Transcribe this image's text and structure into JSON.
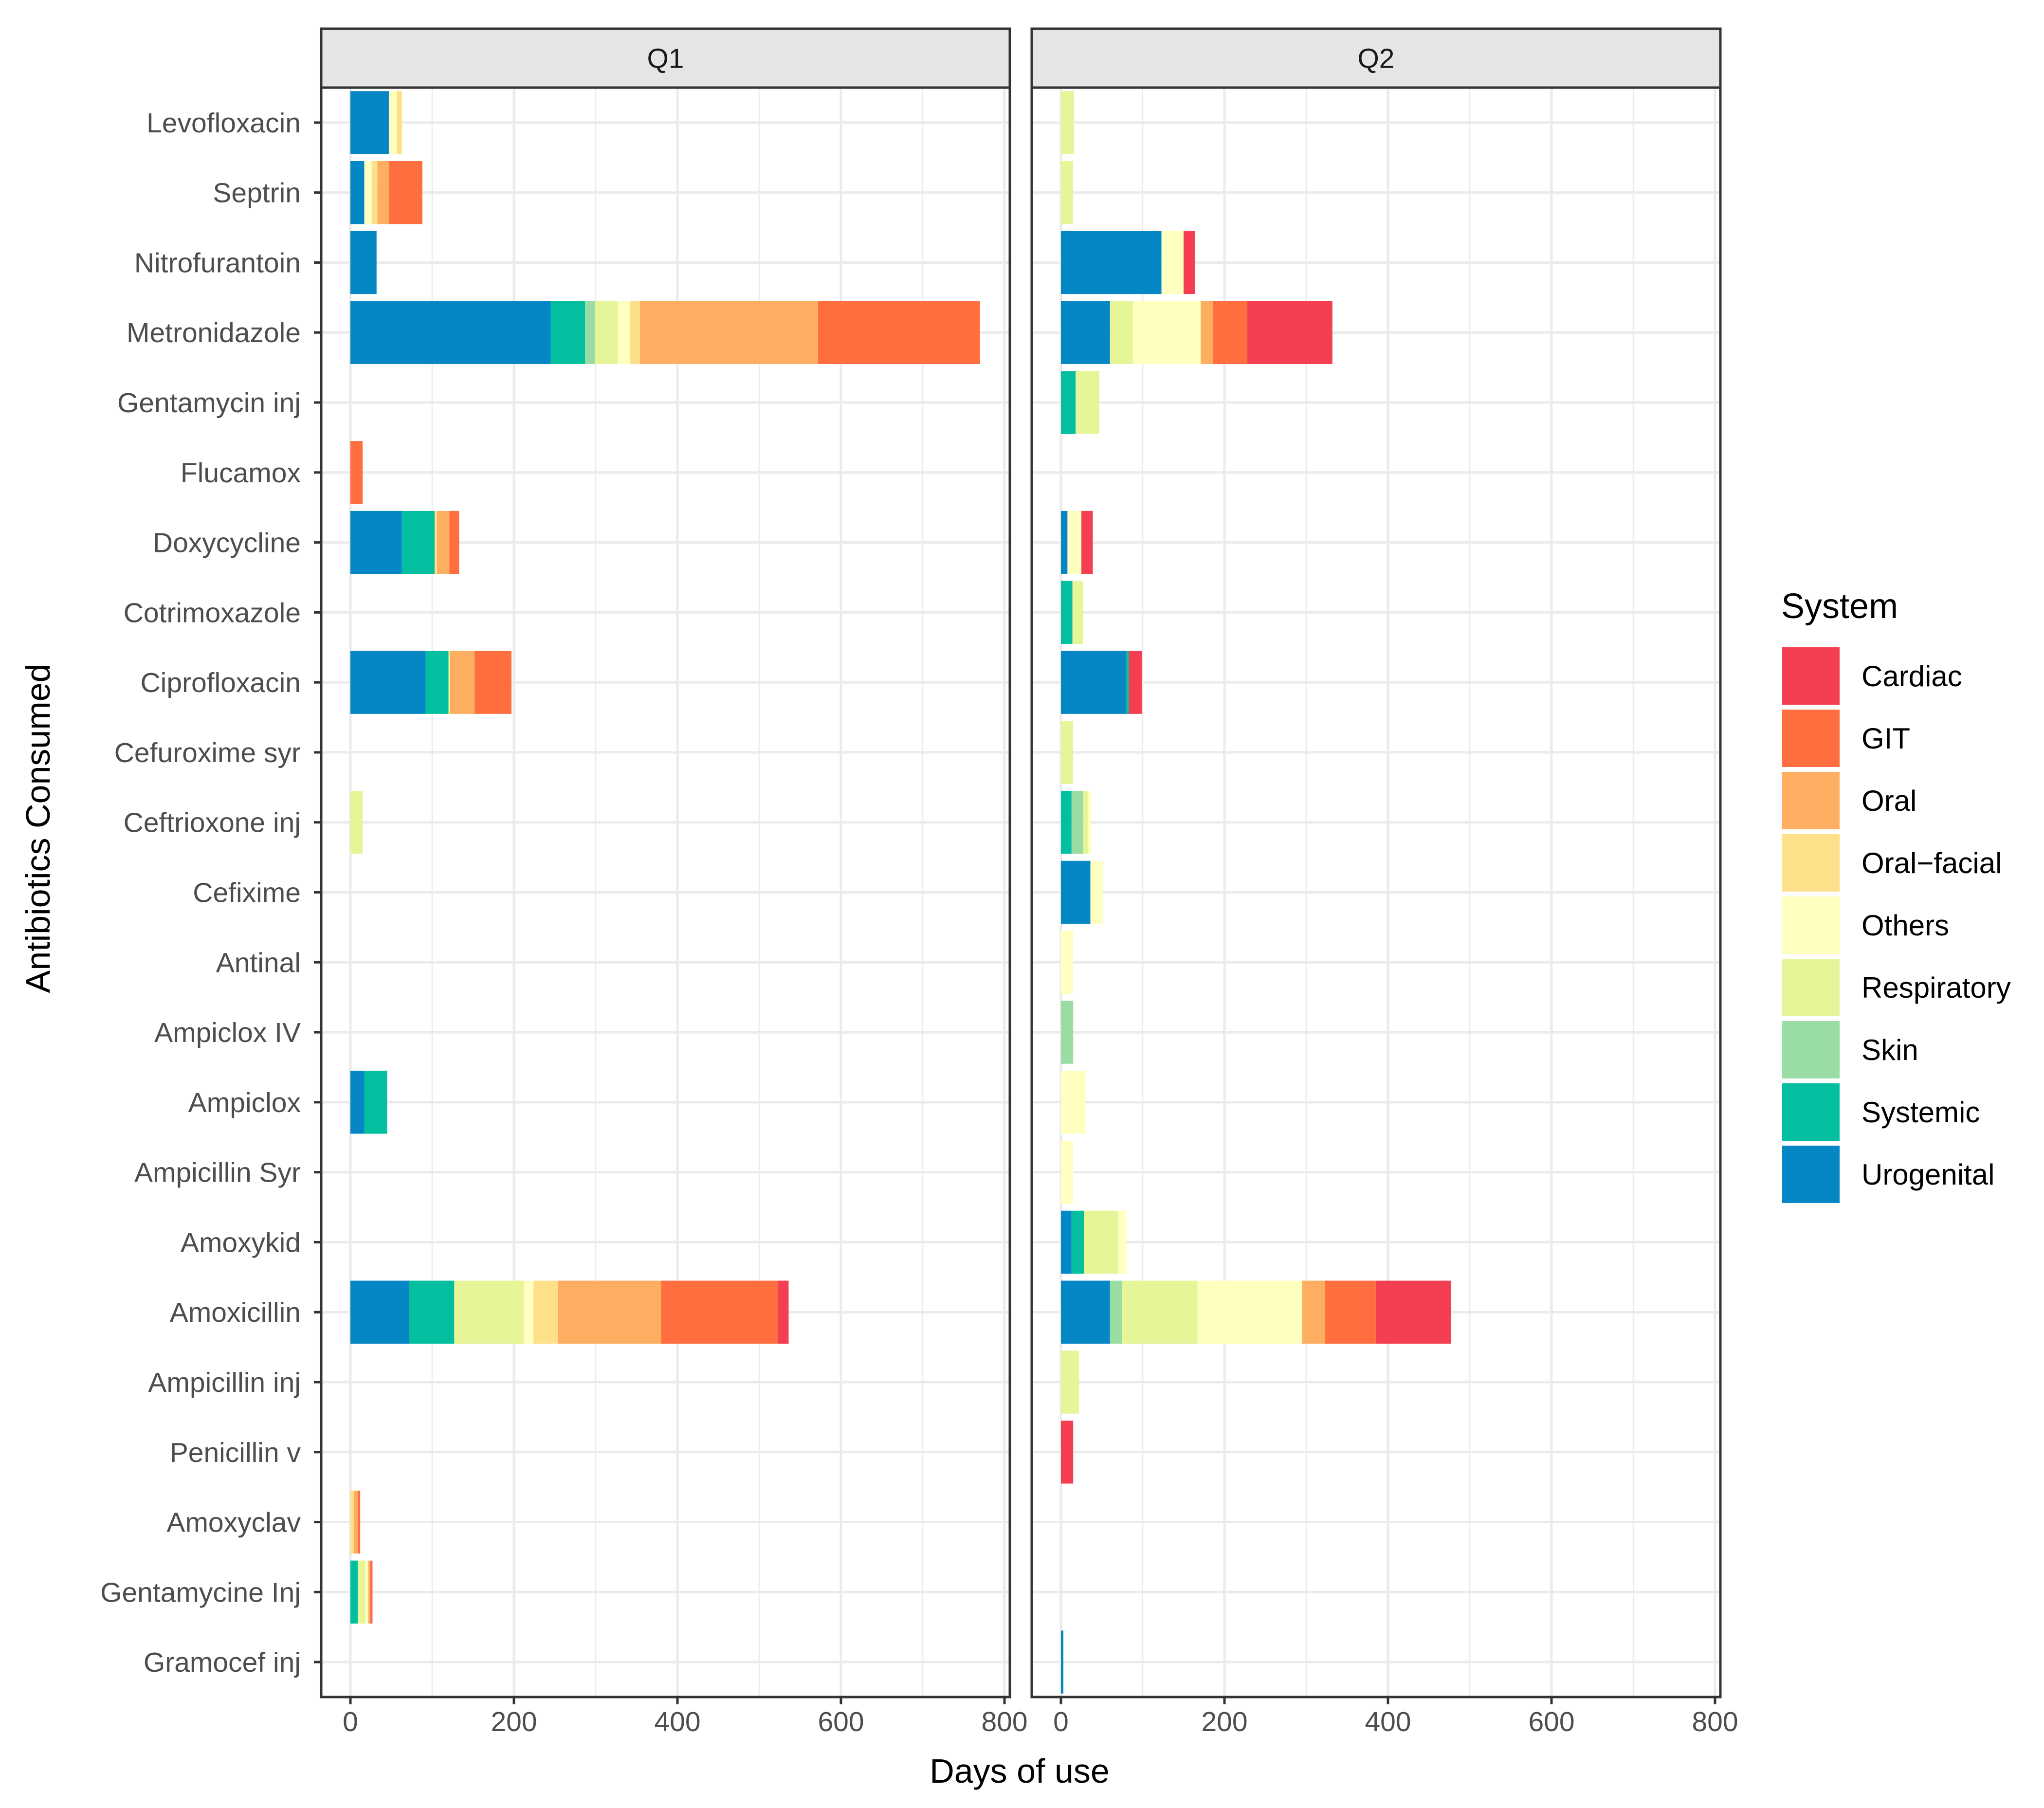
{
  "chart_data": {
    "type": "bar",
    "orientation": "horizontal",
    "stacked": true,
    "facets": [
      "Q1",
      "Q2"
    ],
    "xlabel": "Days of use",
    "ylabel": "Antibiotics Consumed",
    "xlim": [
      -35,
      805
    ],
    "xticks": [
      0,
      200,
      400,
      600,
      800
    ],
    "categories": [
      "Levofloxacin",
      "Septrin",
      "Nitrofurantoin",
      "Metronidazole",
      "Gentamycin inj",
      "Flucamox",
      "Doxycycline",
      "Cotrimoxazole",
      "Ciprofloxacin",
      "Cefuroxime syr",
      "Ceftrioxone inj",
      "Cefixime",
      "Antinal",
      "Ampiclox IV",
      "Ampiclox",
      "Ampicillin Syr",
      "Amoxykid",
      "Amoxicillin",
      "Ampicillin inj",
      "Penicillin v",
      "Amoxyclav",
      "Gentamycine Inj",
      "Gramocef  inj"
    ],
    "series_names": [
      "Urogenital",
      "Systemic",
      "Skin",
      "Respiratory",
      "Others",
      "Oral-facial",
      "Oral",
      "GIT",
      "Cardiac"
    ],
    "legend": {
      "title": "System",
      "position": "right",
      "entries": [
        {
          "name": "Cardiac",
          "color": "#F43F52"
        },
        {
          "name": "GIT",
          "color": "#FE6E3F"
        },
        {
          "name": "Oral",
          "color": "#FDAE61"
        },
        {
          "name": "Oral−facial",
          "color": "#FEE08B"
        },
        {
          "name": "Others",
          "color": "#FFFFBF"
        },
        {
          "name": "Respiratory",
          "color": "#E6F598"
        },
        {
          "name": "Skin",
          "color": "#99DDA4"
        },
        {
          "name": "Systemic",
          "color": "#04BF9F"
        },
        {
          "name": "Urogenital",
          "color": "#0487C4"
        }
      ]
    },
    "panels": [
      {
        "name": "Q1",
        "series": [
          {
            "name": "Urogenital",
            "values": [
              47,
              17,
              32,
              245,
              0,
              0,
              63,
              0,
              92,
              0,
              0,
              0,
              0,
              0,
              17,
              0,
              0,
              72,
              0,
              0,
              0,
              0,
              0
            ]
          },
          {
            "name": "Systemic",
            "values": [
              0,
              0,
              0,
              42,
              0,
              0,
              40,
              0,
              28,
              0,
              0,
              0,
              0,
              0,
              28,
              0,
              0,
              55,
              0,
              0,
              0,
              9,
              0
            ]
          },
          {
            "name": "Skin",
            "values": [
              0,
              0,
              0,
              12,
              0,
              0,
              0,
              0,
              0,
              0,
              0,
              0,
              0,
              0,
              0,
              0,
              0,
              0,
              0,
              0,
              0,
              0,
              0
            ]
          },
          {
            "name": "Respiratory",
            "values": [
              0,
              0,
              0,
              28,
              0,
              0,
              0,
              0,
              2,
              0,
              15,
              0,
              0,
              0,
              0,
              0,
              0,
              85,
              0,
              0,
              0,
              9,
              0
            ]
          },
          {
            "name": "Others",
            "values": [
              10,
              9,
              0,
              15,
              0,
              0,
              0,
              0,
              0,
              0,
              0,
              0,
              0,
              0,
              0,
              0,
              0,
              12,
              0,
              0,
              0,
              4,
              0
            ]
          },
          {
            "name": "Oral-facial",
            "values": [
              6,
              7,
              0,
              12,
              0,
              0,
              3,
              0,
              0,
              0,
              0,
              0,
              0,
              0,
              0,
              0,
              0,
              30,
              0,
              0,
              4,
              0,
              0
            ]
          },
          {
            "name": "Oral",
            "values": [
              0,
              14,
              0,
              218,
              0,
              0,
              15,
              0,
              30,
              0,
              0,
              0,
              0,
              0,
              0,
              0,
              0,
              126,
              0,
              0,
              5,
              2,
              0
            ]
          },
          {
            "name": "GIT",
            "values": [
              0,
              41,
              0,
              198,
              0,
              15,
              12,
              0,
              45,
              0,
              0,
              0,
              0,
              0,
              0,
              0,
              0,
              143,
              0,
              0,
              3,
              2,
              0
            ]
          },
          {
            "name": "Cardiac",
            "values": [
              0,
              0,
              0,
              0,
              0,
              0,
              0,
              0,
              0,
              0,
              0,
              0,
              0,
              0,
              0,
              0,
              0,
              13,
              0,
              0,
              0,
              1,
              0
            ]
          }
        ]
      },
      {
        "name": "Q2",
        "series": [
          {
            "name": "Urogenital",
            "values": [
              0,
              0,
              123,
              60,
              0,
              0,
              8,
              0,
              80,
              0,
              0,
              36,
              0,
              0,
              0,
              0,
              13,
              60,
              0,
              0,
              0,
              0,
              3
            ]
          },
          {
            "name": "Systemic",
            "values": [
              0,
              0,
              0,
              0,
              18,
              0,
              0,
              14,
              3,
              0,
              13,
              0,
              0,
              0,
              0,
              0,
              15,
              0,
              0,
              0,
              0,
              0,
              0
            ]
          },
          {
            "name": "Skin",
            "values": [
              0,
              0,
              0,
              0,
              0,
              0,
              0,
              0,
              0,
              0,
              14,
              0,
              0,
              15,
              0,
              0,
              0,
              15,
              0,
              0,
              0,
              0,
              0
            ]
          },
          {
            "name": "Respiratory",
            "values": [
              16,
              15,
              0,
              28,
              29,
              0,
              0,
              13,
              0,
              15,
              6,
              0,
              0,
              0,
              0,
              0,
              42,
              92,
              22,
              0,
              0,
              0,
              0
            ]
          },
          {
            "name": "Others",
            "values": [
              0,
              0,
              27,
              83,
              0,
              0,
              17,
              0,
              0,
              0,
              4,
              15,
              15,
              0,
              30,
              15,
              10,
              128,
              0,
              0,
              0,
              0,
              0
            ]
          },
          {
            "name": "Oral-facial",
            "values": [
              0,
              0,
              0,
              0,
              0,
              0,
              0,
              0,
              0,
              0,
              0,
              0,
              0,
              0,
              0,
              0,
              0,
              0,
              0,
              0,
              0,
              0,
              0
            ]
          },
          {
            "name": "Oral",
            "values": [
              0,
              0,
              0,
              15,
              0,
              0,
              0,
              0,
              0,
              0,
              0,
              0,
              0,
              0,
              0,
              0,
              0,
              28,
              0,
              0,
              0,
              0,
              0
            ]
          },
          {
            "name": "GIT",
            "values": [
              0,
              0,
              0,
              42,
              0,
              0,
              0,
              0,
              0,
              0,
              0,
              0,
              0,
              0,
              0,
              0,
              0,
              62,
              0,
              0,
              0,
              0,
              0
            ]
          },
          {
            "name": "Cardiac",
            "values": [
              0,
              0,
              14,
              104,
              0,
              0,
              14,
              0,
              16,
              0,
              0,
              0,
              0,
              0,
              0,
              0,
              0,
              92,
              0,
              15,
              0,
              0,
              0
            ]
          }
        ]
      }
    ]
  }
}
